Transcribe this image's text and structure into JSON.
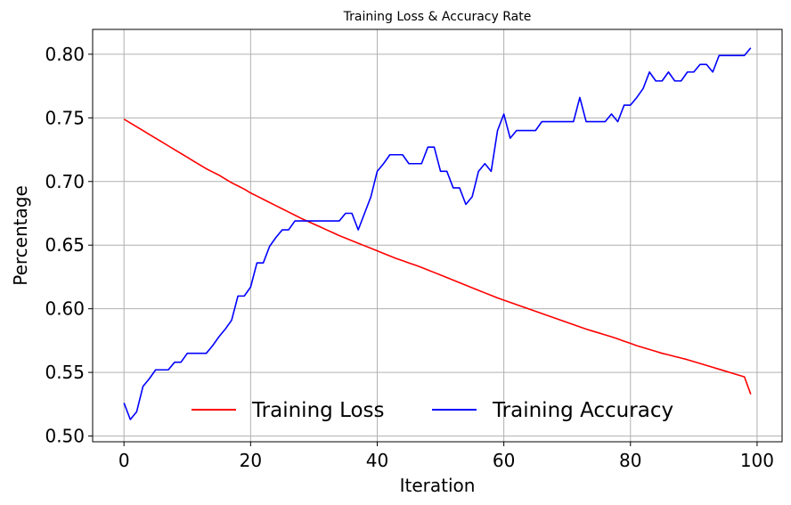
{
  "chart_data": {
    "type": "line",
    "title": "Training Loss & Accuracy Rate",
    "xlabel": "Iteration",
    "ylabel": "Percentage",
    "xlim": [
      -4.95,
      103.95
    ],
    "ylim": [
      0.4955,
      0.8195
    ],
    "xticks": [
      0,
      20,
      40,
      60,
      80,
      100
    ],
    "yticks": [
      0.5,
      0.55,
      0.6,
      0.65,
      0.7,
      0.75,
      0.8
    ],
    "xtick_labels": [
      "0",
      "20",
      "40",
      "60",
      "80",
      "100"
    ],
    "ytick_labels": [
      "0.50",
      "0.55",
      "0.60",
      "0.65",
      "0.70",
      "0.75",
      "0.80"
    ],
    "grid": true,
    "legend": {
      "position": "lower-center",
      "columns": 2
    },
    "x": [
      0,
      1,
      2,
      3,
      4,
      5,
      6,
      7,
      8,
      9,
      10,
      11,
      12,
      13,
      14,
      15,
      16,
      17,
      18,
      19,
      20,
      21,
      22,
      23,
      24,
      25,
      26,
      27,
      28,
      29,
      30,
      31,
      32,
      33,
      34,
      35,
      36,
      37,
      38,
      39,
      40,
      41,
      42,
      43,
      44,
      45,
      46,
      47,
      48,
      49,
      50,
      51,
      52,
      53,
      54,
      55,
      56,
      57,
      58,
      59,
      60,
      61,
      62,
      63,
      64,
      65,
      66,
      67,
      68,
      69,
      70,
      71,
      72,
      73,
      74,
      75,
      76,
      77,
      78,
      79,
      80,
      81,
      82,
      83,
      84,
      85,
      86,
      87,
      88,
      89,
      90,
      91,
      92,
      93,
      94,
      95,
      96,
      97,
      98,
      99
    ],
    "series": [
      {
        "name": "Training Loss",
        "color": "#ff0000",
        "values": [
          0.749,
          0.746,
          0.743,
          0.74,
          0.737,
          0.734,
          0.731,
          0.728,
          0.725,
          0.722,
          0.719,
          0.716,
          0.713,
          0.71,
          0.7075,
          0.705,
          0.702,
          0.699,
          0.6965,
          0.694,
          0.691,
          0.6885,
          0.686,
          0.6835,
          0.681,
          0.6785,
          0.676,
          0.6735,
          0.671,
          0.6688,
          0.6665,
          0.6643,
          0.662,
          0.6598,
          0.6575,
          0.6555,
          0.6535,
          0.6515,
          0.6495,
          0.6475,
          0.6455,
          0.6435,
          0.6415,
          0.6395,
          0.6378,
          0.636,
          0.6343,
          0.6325,
          0.6305,
          0.6285,
          0.6265,
          0.6245,
          0.6225,
          0.6205,
          0.6185,
          0.6165,
          0.6145,
          0.6125,
          0.6105,
          0.6085,
          0.6068,
          0.605,
          0.6033,
          0.6015,
          0.5998,
          0.598,
          0.5963,
          0.5945,
          0.5928,
          0.591,
          0.5893,
          0.5875,
          0.5858,
          0.584,
          0.5825,
          0.581,
          0.5795,
          0.578,
          0.5763,
          0.5745,
          0.5728,
          0.571,
          0.5695,
          0.568,
          0.5665,
          0.565,
          0.5638,
          0.5625,
          0.5613,
          0.56,
          0.5585,
          0.557,
          0.5555,
          0.554,
          0.5525,
          0.551,
          0.5495,
          0.548,
          0.5465,
          0.5328
        ]
      },
      {
        "name": "Training Accuracy",
        "color": "#0000ff",
        "values": [
          0.526,
          0.513,
          0.519,
          0.539,
          0.545,
          0.552,
          0.552,
          0.552,
          0.558,
          0.558,
          0.565,
          0.565,
          0.565,
          0.565,
          0.571,
          0.578,
          0.584,
          0.591,
          0.61,
          0.61,
          0.617,
          0.636,
          0.636,
          0.649,
          0.656,
          0.662,
          0.662,
          0.669,
          0.669,
          0.669,
          0.669,
          0.669,
          0.669,
          0.669,
          0.669,
          0.675,
          0.675,
          0.662,
          0.675,
          0.688,
          0.708,
          0.714,
          0.721,
          0.721,
          0.721,
          0.714,
          0.714,
          0.714,
          0.727,
          0.727,
          0.708,
          0.708,
          0.695,
          0.695,
          0.682,
          0.688,
          0.708,
          0.714,
          0.708,
          0.74,
          0.753,
          0.734,
          0.74,
          0.74,
          0.74,
          0.74,
          0.747,
          0.747,
          0.747,
          0.747,
          0.747,
          0.747,
          0.766,
          0.747,
          0.747,
          0.747,
          0.747,
          0.753,
          0.747,
          0.76,
          0.76,
          0.766,
          0.773,
          0.786,
          0.779,
          0.779,
          0.786,
          0.779,
          0.779,
          0.786,
          0.786,
          0.792,
          0.792,
          0.786,
          0.799,
          0.799,
          0.799,
          0.799,
          0.799,
          0.805
        ]
      }
    ]
  }
}
